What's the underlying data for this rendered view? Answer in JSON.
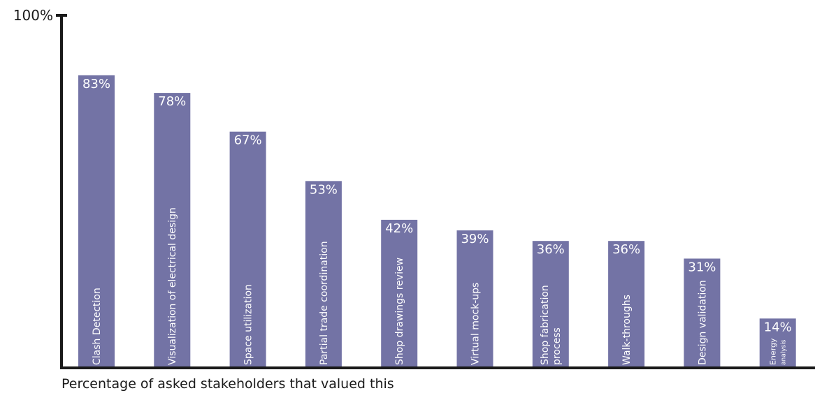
{
  "chart_data": {
    "type": "bar",
    "categories": [
      "Clash Detection",
      "Visualization of electrical design",
      "Space utilization",
      "Partial trade coordination",
      "Shop drawings review",
      "Virtual mock-ups",
      "Shop fabrication process",
      "Walk-throughs",
      "Design validation",
      "Energy analysis"
    ],
    "category_lines": [
      [
        "Clash Detection"
      ],
      [
        "Visualization of electrical design"
      ],
      [
        "Space utilization"
      ],
      [
        "Partial trade coordination"
      ],
      [
        "Shop drawings review"
      ],
      [
        "Virtual mock-ups"
      ],
      [
        "Shop fabrication",
        "process"
      ],
      [
        "Walk-throughs"
      ],
      [
        "Design validation"
      ],
      [
        "Energy",
        "analysis"
      ]
    ],
    "values": [
      83,
      78,
      67,
      53,
      42,
      39,
      36,
      36,
      31,
      14
    ],
    "value_labels": [
      "83%",
      "78%",
      "67%",
      "53%",
      "42%",
      "39%",
      "36%",
      "36%",
      "31%",
      "14%"
    ],
    "ylim": [
      0,
      100
    ],
    "y_tick_label": "100%",
    "xlabel": "Percentage of asked stakeholders that valued this",
    "bar_color": "#7373a5",
    "axis_color": "#1a1a1a",
    "grid": false
  }
}
